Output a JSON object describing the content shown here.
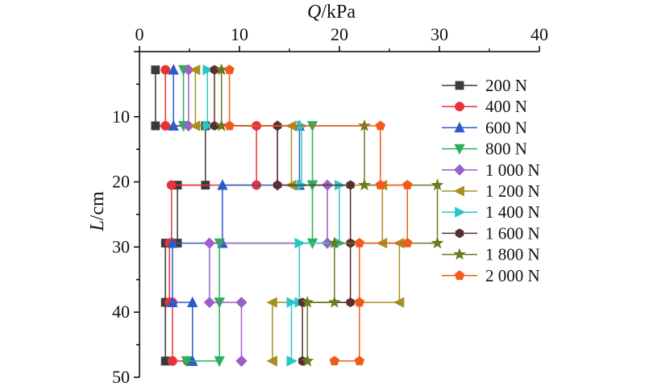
{
  "chart_data": {
    "type": "line",
    "title": "",
    "xlabel_var": "Q",
    "xlabel_unit": "/kPa",
    "ylabel_var": "L",
    "ylabel_unit": "/cm",
    "xlim": [
      0,
      40
    ],
    "ylim": [
      0,
      50
    ],
    "x_ticks": [
      "0",
      "10",
      "20",
      "30",
      "40"
    ],
    "y_ticks": [
      "10",
      "20",
      "30",
      "40",
      "50"
    ],
    "x_axis_position": "top",
    "y_reversed": true,
    "grid": false,
    "legend_position": "right",
    "y_levels": [
      2.8,
      11.4,
      20.5,
      29.4,
      38.5,
      47.5
    ],
    "series": [
      {
        "name": "200 N",
        "color": "#3a3a3a",
        "marker": "square",
        "values": [
          1.6,
          6.6,
          3.8,
          2.6,
          2.6,
          2.6
        ]
      },
      {
        "name": "400 N",
        "color": "#e8313a",
        "marker": "circle",
        "values": [
          2.6,
          11.7,
          3.2,
          3.0,
          3.3,
          4.8
        ]
      },
      {
        "name": "600 N",
        "color": "#2a5bc9",
        "marker": "triangle-up",
        "values": [
          3.4,
          16.0,
          8.3,
          3.3,
          5.3,
          5.3
        ]
      },
      {
        "name": "800 N",
        "color": "#2eb05a",
        "marker": "triangle-down",
        "values": [
          4.4,
          17.3,
          17.3,
          8.0,
          8.0,
          4.7
        ]
      },
      {
        "name": "1 000 N",
        "color": "#9a5fc9",
        "marker": "diamond",
        "values": [
          4.9,
          13.8,
          18.8,
          7.0,
          10.2,
          10.2
        ]
      },
      {
        "name": "1 200 N",
        "color": "#a89020",
        "marker": "triangle-left",
        "values": [
          5.6,
          15.2,
          24.3,
          26.0,
          13.3,
          13.3
        ]
      },
      {
        "name": "1 400 N",
        "color": "#2bc6c6",
        "marker": "triangle-right",
        "values": [
          6.8,
          16.2,
          20.0,
          16.0,
          15.2,
          15.2
        ]
      },
      {
        "name": "1 600 N",
        "color": "#5a2e2e",
        "marker": "hexagon",
        "values": [
          7.5,
          13.8,
          21.1,
          21.1,
          16.3,
          16.3
        ]
      },
      {
        "name": "1 800 N",
        "color": "#6b7a1f",
        "marker": "star",
        "values": [
          8.2,
          22.5,
          29.8,
          19.5,
          16.8,
          16.8
        ]
      },
      {
        "name": "2 000 N",
        "color": "#f05a1a",
        "marker": "pentagon",
        "values": [
          9.0,
          24.1,
          26.8,
          22.0,
          22.0,
          19.5
        ]
      }
    ]
  }
}
